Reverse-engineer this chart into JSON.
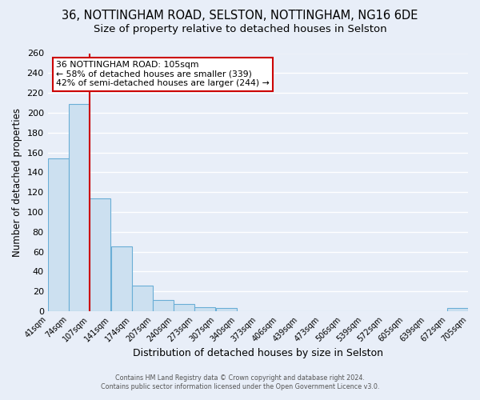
{
  "title1": "36, NOTTINGHAM ROAD, SELSTON, NOTTINGHAM, NG16 6DE",
  "title2": "Size of property relative to detached houses in Selston",
  "xlabel": "Distribution of detached houses by size in Selston",
  "ylabel": "Number of detached properties",
  "bar_edges": [
    41,
    74,
    107,
    141,
    174,
    207,
    240,
    273,
    307,
    340,
    373,
    406,
    439,
    473,
    506,
    539,
    572,
    605,
    639,
    672,
    705
  ],
  "bar_heights": [
    154,
    209,
    114,
    65,
    26,
    11,
    7,
    4,
    3,
    0,
    0,
    0,
    0,
    0,
    0,
    0,
    0,
    0,
    0,
    3
  ],
  "bar_color": "#cce0f0",
  "bar_edge_color": "#6aaed6",
  "vline_x": 107,
  "vline_color": "#cc0000",
  "ylim_max": 260,
  "yticks": [
    0,
    20,
    40,
    60,
    80,
    100,
    120,
    140,
    160,
    180,
    200,
    220,
    240,
    260
  ],
  "annotation_title": "36 NOTTINGHAM ROAD: 105sqm",
  "annotation_line1": "← 58% of detached houses are smaller (339)",
  "annotation_line2": "42% of semi-detached houses are larger (244) →",
  "annotation_box_color": "#ffffff",
  "annotation_box_edge": "#cc0000",
  "footer1": "Contains HM Land Registry data © Crown copyright and database right 2024.",
  "footer2": "Contains public sector information licensed under the Open Government Licence v3.0.",
  "bg_color": "#e8eef8",
  "plot_bg_color": "#e8eef8",
  "grid_color": "#ffffff",
  "title1_fontsize": 10.5,
  "title2_fontsize": 9.5,
  "xlabel_fontsize": 9,
  "ylabel_fontsize": 8.5
}
